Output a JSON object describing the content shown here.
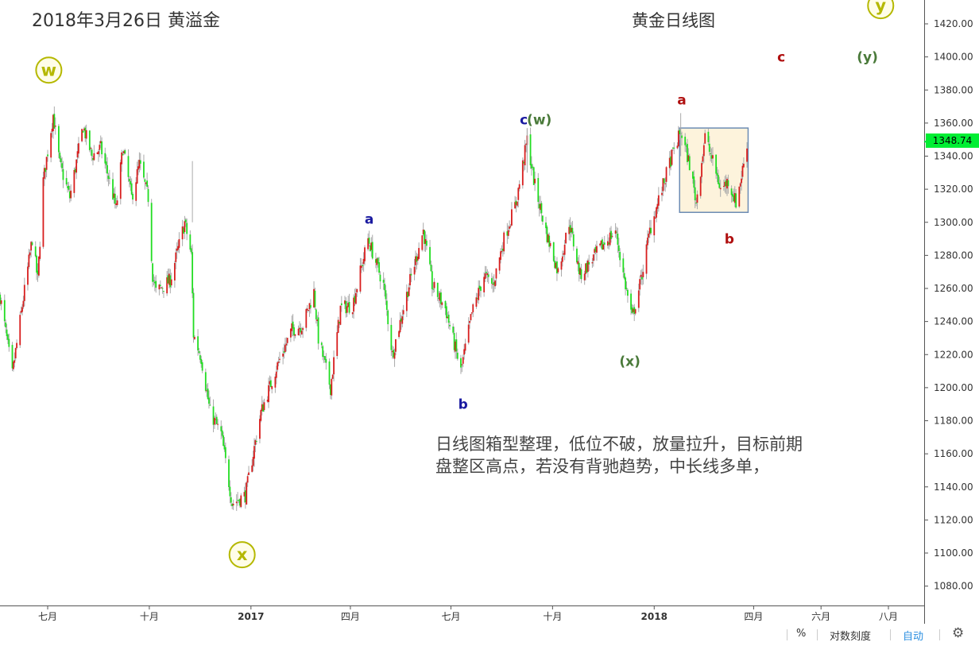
{
  "header": {
    "date_title": "2018年3月26日 黄溢金",
    "chart_title": "黄金日线图"
  },
  "note_lines": [
    "日线图箱型整理，低位不破，放量拉升，目标前期",
    "盘整区高点，若没有背驰趋势，中长线多单，"
  ],
  "current_price": "1348.74",
  "bottom_bar": {
    "percent": "%",
    "log_scale": "对数刻度",
    "auto": "自动",
    "settings_icon": "gear-icon"
  },
  "colors": {
    "up": "#d81e1e",
    "down": "#22dd22",
    "circle": "#b5b800",
    "green_label": "#4a7a3a",
    "blue_label": "#1a1aa0",
    "red_label": "#b01010",
    "box_fill": "#fdf3dc",
    "box_stroke": "#6c8cb4"
  },
  "chart_data": {
    "type": "candlestick",
    "ylim": [
      1064,
      1432
    ],
    "yticks": [
      "1080.00",
      "1100.00",
      "1120.00",
      "1140.00",
      "1160.00",
      "1180.00",
      "1200.00",
      "1220.00",
      "1240.00",
      "1260.00",
      "1280.00",
      "1300.00",
      "1320.00",
      "1340.00",
      "1360.00",
      "1380.00",
      "1400.00",
      "1420.00"
    ],
    "xticks": [
      {
        "label": "七月",
        "date": "2016-07-01",
        "bold": false
      },
      {
        "label": "十月",
        "date": "2016-10-01",
        "bold": false
      },
      {
        "label": "2017",
        "date": "2017-01-01",
        "bold": true
      },
      {
        "label": "四月",
        "date": "2017-04-01",
        "bold": false
      },
      {
        "label": "七月",
        "date": "2017-07-01",
        "bold": false
      },
      {
        "label": "十月",
        "date": "2017-10-01",
        "bold": false
      },
      {
        "label": "2018",
        "date": "2018-01-01",
        "bold": true
      },
      {
        "label": "四月",
        "date": "2018-04-01",
        "bold": false
      },
      {
        "label": "六月",
        "date": "2018-06-01",
        "bold": false
      },
      {
        "label": "八月",
        "date": "2018-08-01",
        "bold": false
      }
    ],
    "series": [
      {
        "anchors": [
          [
            "2016-05-19",
            1255
          ],
          [
            "2016-05-30",
            1208
          ],
          [
            "2016-06-07",
            1245
          ],
          [
            "2016-06-17",
            1290
          ],
          [
            "2016-06-22",
            1265
          ],
          [
            "2016-06-27",
            1325
          ],
          [
            "2016-07-06",
            1365
          ],
          [
            "2016-07-12",
            1335
          ],
          [
            "2016-07-21",
            1315
          ],
          [
            "2016-08-02",
            1358
          ],
          [
            "2016-08-10",
            1340
          ],
          [
            "2016-08-18",
            1345
          ],
          [
            "2016-08-26",
            1325
          ],
          [
            "2016-09-01",
            1308
          ],
          [
            "2016-09-07",
            1345
          ],
          [
            "2016-09-15",
            1315
          ],
          [
            "2016-09-22",
            1335
          ],
          [
            "2016-09-30",
            1315
          ],
          [
            "2016-10-04",
            1268
          ],
          [
            "2016-10-07",
            1258
          ],
          [
            "2016-10-20",
            1265
          ],
          [
            "2016-11-02",
            1300
          ],
          [
            "2016-11-08",
            1280
          ],
          [
            "2016-11-10",
            1232
          ],
          [
            "2016-11-17",
            1218
          ],
          [
            "2016-11-25",
            1185
          ],
          [
            "2016-12-05",
            1172
          ],
          [
            "2016-12-15",
            1130
          ],
          [
            "2016-12-27",
            1135
          ],
          [
            "2017-01-10",
            1185
          ],
          [
            "2017-01-24",
            1212
          ],
          [
            "2017-02-07",
            1235
          ],
          [
            "2017-02-17",
            1238
          ],
          [
            "2017-02-27",
            1258
          ],
          [
            "2017-03-03",
            1230
          ],
          [
            "2017-03-14",
            1200
          ],
          [
            "2017-03-23",
            1248
          ],
          [
            "2017-04-03",
            1250
          ],
          [
            "2017-04-17",
            1290
          ],
          [
            "2017-05-01",
            1262
          ],
          [
            "2017-05-09",
            1220
          ],
          [
            "2017-05-24",
            1262
          ],
          [
            "2017-06-06",
            1295
          ],
          [
            "2017-06-14",
            1262
          ],
          [
            "2017-06-26",
            1248
          ],
          [
            "2017-07-10",
            1210
          ],
          [
            "2017-07-20",
            1245
          ],
          [
            "2017-07-31",
            1268
          ],
          [
            "2017-08-08",
            1262
          ],
          [
            "2017-08-18",
            1290
          ],
          [
            "2017-08-29",
            1312
          ],
          [
            "2017-09-08",
            1350
          ],
          [
            "2017-09-15",
            1322
          ],
          [
            "2017-09-26",
            1292
          ],
          [
            "2017-10-06",
            1270
          ],
          [
            "2017-10-16",
            1300
          ],
          [
            "2017-10-26",
            1268
          ],
          [
            "2017-11-03",
            1275
          ],
          [
            "2017-11-14",
            1285
          ],
          [
            "2017-11-27",
            1295
          ],
          [
            "2017-12-05",
            1265
          ],
          [
            "2017-12-12",
            1242
          ],
          [
            "2017-12-20",
            1265
          ],
          [
            "2017-12-28",
            1295
          ],
          [
            "2018-01-08",
            1320
          ],
          [
            "2018-01-16",
            1338
          ],
          [
            "2018-01-25",
            1355
          ],
          [
            "2018-02-02",
            1335
          ],
          [
            "2018-02-08",
            1312
          ],
          [
            "2018-02-16",
            1352
          ],
          [
            "2018-02-26",
            1330
          ],
          [
            "2018-03-02",
            1320
          ],
          [
            "2018-03-09",
            1325
          ],
          [
            "2018-03-16",
            1312
          ],
          [
            "2018-03-21",
            1328
          ],
          [
            "2018-03-26",
            1348
          ]
        ]
      }
    ],
    "annotations": [
      {
        "text": "w",
        "type": "circle",
        "date": "2016-07-02",
        "price": 1392
      },
      {
        "text": "x",
        "type": "circle",
        "date": "2016-12-24",
        "price": 1099
      },
      {
        "text": "y",
        "type": "circle",
        "date": "2018-07-25",
        "price": 1431
      },
      {
        "text": "a",
        "color": "blue",
        "date": "2017-04-18",
        "price": 1302
      },
      {
        "text": "b",
        "color": "blue",
        "date": "2017-07-12",
        "price": 1190
      },
      {
        "text": "c",
        "color": "blue",
        "date": "2017-09-05",
        "price": 1362
      },
      {
        "text": "(w)",
        "color": "green",
        "date": "2017-09-19",
        "price": 1362
      },
      {
        "text": "(x)",
        "color": "green",
        "date": "2017-12-10",
        "price": 1216
      },
      {
        "text": "a",
        "color": "red",
        "date": "2018-01-26",
        "price": 1374
      },
      {
        "text": "b",
        "color": "red",
        "date": "2018-03-10",
        "price": 1290
      },
      {
        "text": "c",
        "color": "red",
        "date": "2018-04-26",
        "price": 1400
      },
      {
        "text": "(y)",
        "color": "green",
        "date": "2018-07-13",
        "price": 1400
      }
    ],
    "consolidation_box": {
      "from": "2018-01-24",
      "to": "2018-03-27",
      "high": 1357,
      "low": 1306
    }
  }
}
